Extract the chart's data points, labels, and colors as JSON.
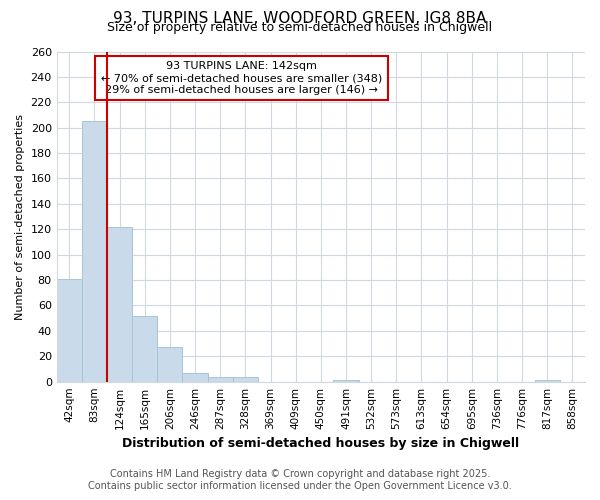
{
  "title": "93, TURPINS LANE, WOODFORD GREEN, IG8 8BA",
  "subtitle": "Size of property relative to semi-detached houses in Chigwell",
  "xlabel": "Distribution of semi-detached houses by size in Chigwell",
  "ylabel": "Number of semi-detached properties",
  "bin_labels": [
    "42sqm",
    "83sqm",
    "124sqm",
    "165sqm",
    "206sqm",
    "246sqm",
    "287sqm",
    "328sqm",
    "369sqm",
    "409sqm",
    "450sqm",
    "491sqm",
    "532sqm",
    "573sqm",
    "613sqm",
    "654sqm",
    "695sqm",
    "736sqm",
    "776sqm",
    "817sqm",
    "858sqm"
  ],
  "bin_values": [
    81,
    205,
    122,
    52,
    27,
    7,
    4,
    4,
    0,
    0,
    0,
    1,
    0,
    0,
    0,
    0,
    0,
    0,
    0,
    1,
    0
  ],
  "bar_color": "#c9daea",
  "bar_edge_color": "#a8c4d8",
  "vline_color": "#cc0000",
  "vline_position": 1.5,
  "annotation_title": "93 TURPINS LANE: 142sqm",
  "annotation_line1": "← 70% of semi-detached houses are smaller (348)",
  "annotation_line2": "29% of semi-detached houses are larger (146) →",
  "annotation_box_color": "#cc0000",
  "ylim": [
    0,
    260
  ],
  "yticks": [
    0,
    20,
    40,
    60,
    80,
    100,
    120,
    140,
    160,
    180,
    200,
    220,
    240,
    260
  ],
  "footer_line1": "Contains HM Land Registry data © Crown copyright and database right 2025.",
  "footer_line2": "Contains public sector information licensed under the Open Government Licence v3.0.",
  "bg_color": "#ffffff",
  "plot_bg_color": "#ffffff",
  "grid_color": "#d0d8e0"
}
